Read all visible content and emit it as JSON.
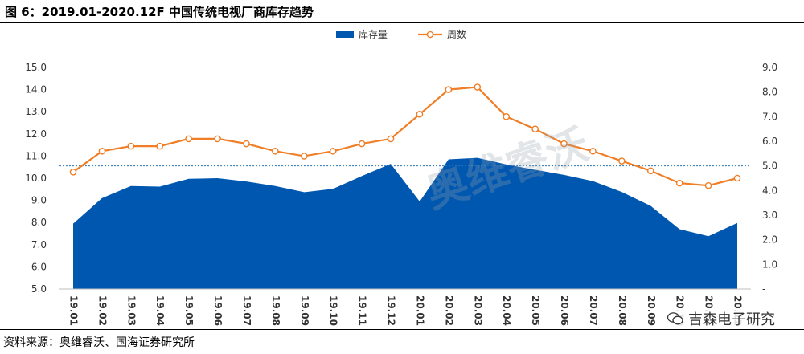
{
  "title": "图 6：2019.01-2020.12F 中国传统电视厂商库存趋势",
  "source": "资料来源：奥维睿沃、国海证券研究所",
  "watermarks": {
    "logo": "奥维睿沃",
    "wechat": "吉森电子研究"
  },
  "chart_data": {
    "type": "area+line",
    "categories": [
      "19.01",
      "19.02",
      "19.03",
      "19.04",
      "19.05",
      "19.06",
      "19.07",
      "19.08",
      "19.09",
      "19.10",
      "19.11",
      "19.12",
      "20.01",
      "20.02",
      "20.03",
      "20.04",
      "20.05",
      "20.06",
      "20.07",
      "20.08",
      "20.09",
      "20.10",
      "20.11",
      "20.12"
    ],
    "series": [
      {
        "name": "库存量",
        "axis": "left",
        "type": "area",
        "color": "#0057B0",
        "values": [
          7.95,
          9.1,
          9.65,
          9.62,
          9.97,
          10.0,
          9.85,
          9.65,
          9.37,
          9.52,
          10.1,
          10.65,
          8.95,
          10.85,
          10.92,
          10.62,
          10.38,
          10.15,
          9.87,
          9.38,
          8.75,
          7.7,
          7.38,
          7.98
        ]
      },
      {
        "name": "周数",
        "axis": "right",
        "type": "line",
        "color": "#F07E26",
        "values": [
          4.75,
          5.6,
          5.8,
          5.8,
          6.1,
          6.1,
          5.9,
          5.6,
          5.4,
          5.6,
          5.9,
          6.1,
          7.1,
          8.1,
          8.2,
          7.0,
          6.5,
          5.9,
          5.6,
          5.2,
          4.8,
          4.3,
          4.2,
          4.5
        ]
      }
    ],
    "left_axis": {
      "min": 5.0,
      "max": 15.0,
      "step": 1.0,
      "tick_labels": [
        "5.0",
        "6.0",
        "7.0",
        "8.0",
        "9.0",
        "10.0",
        "11.0",
        "12.0",
        "13.0",
        "14.0",
        "15.0"
      ]
    },
    "right_axis": {
      "min": 0,
      "max": 9.0,
      "step": 1.0,
      "tick_labels": [
        "-",
        "1.0",
        "2.0",
        "3.0",
        "4.0",
        "5.0",
        "6.0",
        "7.0",
        "8.0",
        "9.0"
      ]
    },
    "reference_line": {
      "axis": "right",
      "value": 5.0,
      "color": "#2E75B6",
      "style": "dotted"
    },
    "legend": {
      "position": "top-center"
    },
    "grid": false
  }
}
